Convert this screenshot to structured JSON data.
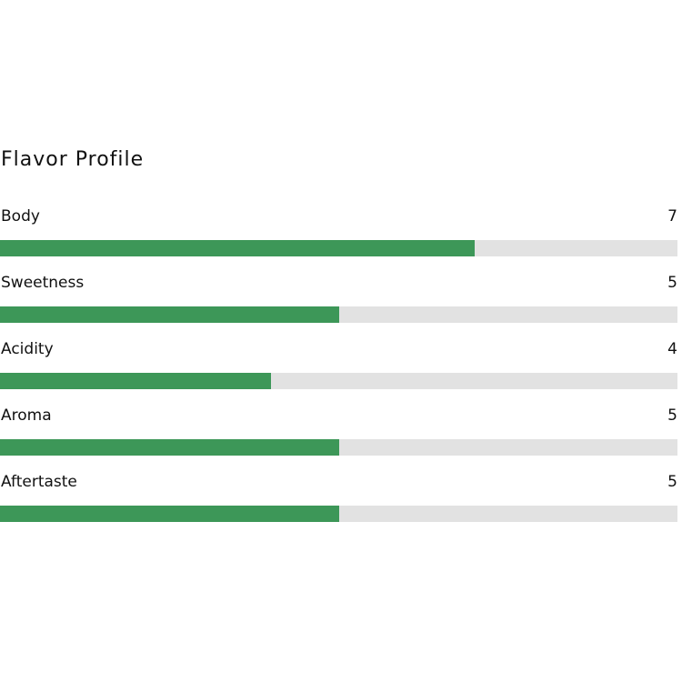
{
  "title": "Flavor Profile",
  "xlim": [
    0,
    10
  ],
  "fill_color": "#3d9758",
  "track_color": "#e2e2e2",
  "attributes": [
    {
      "label": "Body",
      "value": 7
    },
    {
      "label": "Sweetness",
      "value": 5
    },
    {
      "label": "Acidity",
      "value": 4
    },
    {
      "label": "Aroma",
      "value": 5
    },
    {
      "label": "Aftertaste",
      "value": 5
    }
  ]
}
